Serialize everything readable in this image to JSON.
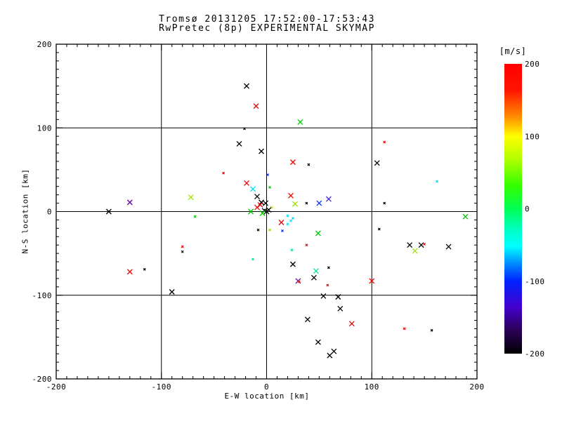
{
  "title_line1": "Tromsø 20131205 17:52:00-17:53:43",
  "title_line2": "RwPretec (8p) EXPERIMENTAL SKYMAP",
  "chart_data": {
    "type": "scatter",
    "title": "Tromsø 20131205 17:52:00-17:53:43",
    "subtitle": "RwPretec (8p) EXPERIMENTAL SKYMAP",
    "xlabel": "E-W location [km]",
    "ylabel": "N-S location [km]",
    "xlim": [
      -200,
      200
    ],
    "ylim": [
      -200,
      200
    ],
    "x_ticks": [
      -200,
      -100,
      0,
      100,
      200
    ],
    "y_ticks": [
      200,
      100,
      0,
      -100,
      -200
    ],
    "minor_tick_step": 10,
    "grid": true,
    "marker": "x",
    "background": "#ffffff",
    "axis_color": "#000000",
    "colorbar": {
      "title": "[m/s]",
      "max": 200,
      "min": -200,
      "ticks": [
        200,
        100,
        0,
        -100,
        -200
      ],
      "gradient": [
        {
          "o": 0.0,
          "c": "#ff0000"
        },
        {
          "o": 0.09,
          "c": "#ff1400"
        },
        {
          "o": 0.18,
          "c": "#ff8800"
        },
        {
          "o": 0.25,
          "c": "#ffff00"
        },
        {
          "o": 0.33,
          "c": "#b0ff00"
        },
        {
          "o": 0.42,
          "c": "#33ff00"
        },
        {
          "o": 0.5,
          "c": "#00ff55"
        },
        {
          "o": 0.58,
          "c": "#00ffcc"
        },
        {
          "o": 0.63,
          "c": "#00ffff"
        },
        {
          "o": 0.7,
          "c": "#0077ff"
        },
        {
          "o": 0.75,
          "c": "#0022ff"
        },
        {
          "o": 0.84,
          "c": "#4400cc"
        },
        {
          "o": 0.92,
          "c": "#2a0055"
        },
        {
          "o": 1.0,
          "c": "#000000"
        }
      ]
    },
    "palette": {
      "black": "#000000",
      "red": "#ee0000",
      "green": "#00c800",
      "chartreuse": "#9be400",
      "springgreen": "#00e690",
      "cyan": "#00dcf0",
      "blue": "#0033ff",
      "purple": "#6600aa",
      "violet": "#4b2bd0",
      "yellow": "#e0e000"
    },
    "points": [
      {
        "x": -19,
        "y": 150,
        "c": "black",
        "s": "x"
      },
      {
        "x": -10,
        "y": 126,
        "c": "red",
        "s": "x"
      },
      {
        "x": 32,
        "y": 107,
        "c": "green",
        "s": "x"
      },
      {
        "x": -21,
        "y": 99,
        "c": "black",
        "s": "d"
      },
      {
        "x": -26,
        "y": 81,
        "c": "black",
        "s": "x"
      },
      {
        "x": -5,
        "y": 72,
        "c": "black",
        "s": "x"
      },
      {
        "x": 112,
        "y": 83,
        "c": "red",
        "s": "d"
      },
      {
        "x": 105,
        "y": 58,
        "c": "black",
        "s": "x"
      },
      {
        "x": 25,
        "y": 59,
        "c": "red",
        "s": "x"
      },
      {
        "x": 40,
        "y": 56,
        "c": "black",
        "s": "d"
      },
      {
        "x": 1,
        "y": 44,
        "c": "blue",
        "s": "d"
      },
      {
        "x": 162,
        "y": 36,
        "c": "cyan",
        "s": "d"
      },
      {
        "x": -41,
        "y": 46,
        "c": "red",
        "s": "d"
      },
      {
        "x": -19,
        "y": 34,
        "c": "red",
        "s": "x"
      },
      {
        "x": -13,
        "y": 27,
        "c": "cyan",
        "s": "x"
      },
      {
        "x": 3,
        "y": 29,
        "c": "green",
        "s": "d"
      },
      {
        "x": -9,
        "y": 18,
        "c": "black",
        "s": "x"
      },
      {
        "x": 23,
        "y": 19,
        "c": "red",
        "s": "x"
      },
      {
        "x": -72,
        "y": 17,
        "c": "chartreuse",
        "s": "x"
      },
      {
        "x": -130,
        "y": 11,
        "c": "purple",
        "s": "x"
      },
      {
        "x": 59,
        "y": 15,
        "c": "violet",
        "s": "x"
      },
      {
        "x": 112,
        "y": 10,
        "c": "black",
        "s": "d"
      },
      {
        "x": -5,
        "y": 11,
        "c": "black",
        "s": "x"
      },
      {
        "x": -1,
        "y": 10,
        "c": "black",
        "s": "x"
      },
      {
        "x": 27,
        "y": 9,
        "c": "chartreuse",
        "s": "x"
      },
      {
        "x": 38,
        "y": 10,
        "c": "black",
        "s": "d"
      },
      {
        "x": 50,
        "y": 10,
        "c": "blue",
        "s": "x"
      },
      {
        "x": -6,
        "y": 8,
        "c": "red",
        "s": "x"
      },
      {
        "x": -9,
        "y": 5,
        "c": "red",
        "s": "x"
      },
      {
        "x": 5,
        "y": 5,
        "c": "yellow",
        "s": "d"
      },
      {
        "x": -15,
        "y": 0,
        "c": "green",
        "s": "x"
      },
      {
        "x": 0,
        "y": 0,
        "c": "black",
        "s": "x"
      },
      {
        "x": 2,
        "y": 2,
        "c": "black",
        "s": "x"
      },
      {
        "x": -2,
        "y": 1,
        "c": "black",
        "s": "x"
      },
      {
        "x": -150,
        "y": 0,
        "c": "black",
        "s": "x"
      },
      {
        "x": 189,
        "y": -6,
        "c": "green",
        "s": "x"
      },
      {
        "x": -4,
        "y": -2,
        "c": "green",
        "s": "x"
      },
      {
        "x": -68,
        "y": -6,
        "c": "green",
        "s": "d"
      },
      {
        "x": 20,
        "y": -5,
        "c": "cyan",
        "s": "d"
      },
      {
        "x": 25,
        "y": -8,
        "c": "cyan",
        "s": "d"
      },
      {
        "x": 23,
        "y": -11,
        "c": "cyan",
        "s": "d"
      },
      {
        "x": 14,
        "y": -13,
        "c": "red",
        "s": "x"
      },
      {
        "x": 20,
        "y": -15,
        "c": "cyan",
        "s": "d"
      },
      {
        "x": 107,
        "y": -21,
        "c": "black",
        "s": "d"
      },
      {
        "x": -8,
        "y": -22,
        "c": "black",
        "s": "d"
      },
      {
        "x": 3,
        "y": -22,
        "c": "chartreuse",
        "s": "d"
      },
      {
        "x": 15,
        "y": -23,
        "c": "blue",
        "s": "d"
      },
      {
        "x": 49,
        "y": -26,
        "c": "green",
        "s": "x"
      },
      {
        "x": 136,
        "y": -40,
        "c": "black",
        "s": "x"
      },
      {
        "x": 147,
        "y": -40,
        "c": "black",
        "s": "x"
      },
      {
        "x": 150,
        "y": -39,
        "c": "red",
        "s": "d"
      },
      {
        "x": 141,
        "y": -47,
        "c": "chartreuse",
        "s": "x"
      },
      {
        "x": 173,
        "y": -42,
        "c": "black",
        "s": "x"
      },
      {
        "x": -80,
        "y": -42,
        "c": "red",
        "s": "d"
      },
      {
        "x": -80,
        "y": -48,
        "c": "black",
        "s": "d"
      },
      {
        "x": 38,
        "y": -40,
        "c": "red",
        "s": "d"
      },
      {
        "x": 24,
        "y": -46,
        "c": "springgreen",
        "s": "d"
      },
      {
        "x": -13,
        "y": -57,
        "c": "springgreen",
        "s": "d"
      },
      {
        "x": 25,
        "y": -63,
        "c": "black",
        "s": "x"
      },
      {
        "x": -130,
        "y": -72,
        "c": "red",
        "s": "x"
      },
      {
        "x": -116,
        "y": -69,
        "c": "black",
        "s": "d"
      },
      {
        "x": 47,
        "y": -71,
        "c": "springgreen",
        "s": "x"
      },
      {
        "x": 59,
        "y": -67,
        "c": "black",
        "s": "d"
      },
      {
        "x": 45,
        "y": -79,
        "c": "black",
        "s": "x"
      },
      {
        "x": 30,
        "y": -83,
        "c": "purple",
        "s": "x"
      },
      {
        "x": 31,
        "y": -84,
        "c": "red",
        "s": "d"
      },
      {
        "x": 58,
        "y": -88,
        "c": "red",
        "s": "d"
      },
      {
        "x": -90,
        "y": -96,
        "c": "black",
        "s": "x"
      },
      {
        "x": 54,
        "y": -101,
        "c": "black",
        "s": "x"
      },
      {
        "x": 68,
        "y": -102,
        "c": "black",
        "s": "x"
      },
      {
        "x": 100,
        "y": -83,
        "c": "red",
        "s": "x"
      },
      {
        "x": 70,
        "y": -116,
        "c": "black",
        "s": "x"
      },
      {
        "x": 81,
        "y": -134,
        "c": "red",
        "s": "x"
      },
      {
        "x": 131,
        "y": -140,
        "c": "red",
        "s": "d"
      },
      {
        "x": 157,
        "y": -142,
        "c": "black",
        "s": "d"
      },
      {
        "x": 39,
        "y": -129,
        "c": "black",
        "s": "x"
      },
      {
        "x": 49,
        "y": -156,
        "c": "black",
        "s": "x"
      },
      {
        "x": 60,
        "y": -172,
        "c": "black",
        "s": "x"
      },
      {
        "x": 64,
        "y": -167,
        "c": "black",
        "s": "x"
      }
    ]
  }
}
